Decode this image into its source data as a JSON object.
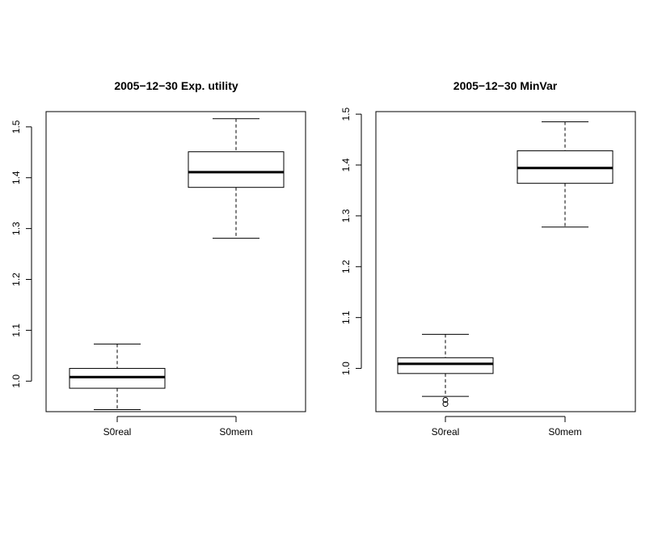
{
  "chart_data": [
    {
      "type": "boxplot",
      "title": "2005−12−30 Exp. utility",
      "categories": [
        "S0real",
        "S0mem"
      ],
      "ylim": [
        0.94,
        1.53
      ],
      "yticks": [
        1.0,
        1.1,
        1.2,
        1.3,
        1.4,
        1.5
      ],
      "ytick_labels": [
        "1.0",
        "1.1",
        "1.2",
        "1.3",
        "1.4",
        "1.5"
      ],
      "boxes": [
        {
          "name": "S0real",
          "whisker_low": 0.944,
          "q1": 0.986,
          "median": 1.008,
          "q3": 1.025,
          "whisker_high": 1.073,
          "outliers": []
        },
        {
          "name": "S0mem",
          "whisker_low": 1.281,
          "q1": 1.381,
          "median": 1.411,
          "q3": 1.451,
          "whisker_high": 1.516,
          "outliers": []
        }
      ]
    },
    {
      "type": "boxplot",
      "title": "2005−12−30 MinVar",
      "categories": [
        "S0real",
        "S0mem"
      ],
      "ylim": [
        0.915,
        1.505
      ],
      "yticks": [
        1.0,
        1.1,
        1.2,
        1.3,
        1.4,
        1.5
      ],
      "ytick_labels": [
        "1.0",
        "1.1",
        "1.2",
        "1.3",
        "1.4",
        "1.5"
      ],
      "boxes": [
        {
          "name": "S0real",
          "whisker_low": 0.945,
          "q1": 0.99,
          "median": 1.009,
          "q3": 1.021,
          "whisker_high": 1.067,
          "outliers": [
            0.93,
            0.938
          ]
        },
        {
          "name": "S0mem",
          "whisker_low": 1.278,
          "q1": 1.364,
          "median": 1.394,
          "q3": 1.428,
          "whisker_high": 1.485,
          "outliers": []
        }
      ]
    }
  ]
}
